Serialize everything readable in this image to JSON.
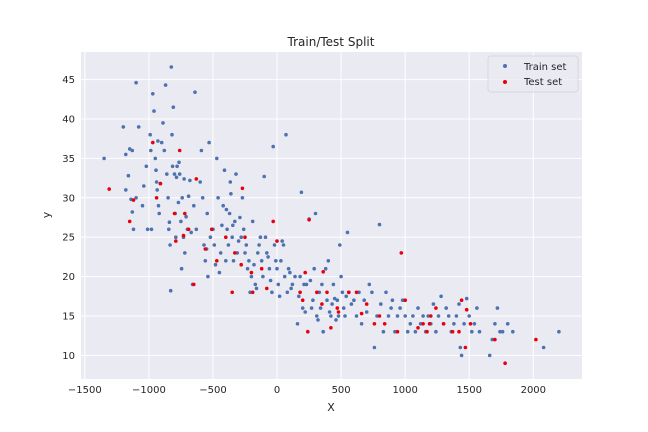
{
  "chart_data": {
    "type": "scatter",
    "title": "Train/Test Split",
    "xlabel": "X",
    "ylabel": "y",
    "xlim": [
      -1530,
      2380
    ],
    "ylim": [
      7,
      48.5
    ],
    "xticks": [
      -1500,
      -1000,
      -500,
      0,
      500,
      1000,
      1500,
      2000
    ],
    "xtick_labels": [
      "−1500",
      "−1000",
      "−500",
      "0",
      "500",
      "1000",
      "1500",
      "2000"
    ],
    "yticks": [
      10,
      15,
      20,
      25,
      30,
      35,
      40,
      45
    ],
    "ytick_labels": [
      "10",
      "15",
      "20",
      "25",
      "30",
      "35",
      "40",
      "45"
    ],
    "grid": true,
    "legend_position": "top-right",
    "colors": {
      "train": "#4c72b0",
      "test": "#e8000b",
      "background": "#eaeaf2",
      "grid": "#ffffff"
    },
    "series": [
      {
        "name": "Train set",
        "key": "train",
        "points": [
          [
            -1350,
            35
          ],
          [
            -1200,
            39
          ],
          [
            -1180,
            35.5
          ],
          [
            -1150,
            36.2
          ],
          [
            -1130,
            36
          ],
          [
            -1100,
            44.6
          ],
          [
            -1080,
            39
          ],
          [
            -1180,
            31
          ],
          [
            -1160,
            32.8
          ],
          [
            -1140,
            29.8
          ],
          [
            -1130,
            28.2
          ],
          [
            -1120,
            26
          ],
          [
            -1100,
            30
          ],
          [
            -1050,
            29
          ],
          [
            -1040,
            31.5
          ],
          [
            -1020,
            34
          ],
          [
            -1010,
            26
          ],
          [
            -990,
            38
          ],
          [
            -985,
            36
          ],
          [
            -980,
            26
          ],
          [
            -970,
            43.2
          ],
          [
            -960,
            41
          ],
          [
            -950,
            35
          ],
          [
            -945,
            33.5
          ],
          [
            -940,
            32
          ],
          [
            -935,
            31
          ],
          [
            -930,
            37.2
          ],
          [
            -925,
            29
          ],
          [
            -920,
            28
          ],
          [
            -910,
            31.8
          ],
          [
            -900,
            37
          ],
          [
            -890,
            39.5
          ],
          [
            -880,
            36
          ],
          [
            -870,
            44.3
          ],
          [
            -860,
            33
          ],
          [
            -850,
            30
          ],
          [
            -845,
            26
          ],
          [
            -840,
            26.9
          ],
          [
            -835,
            24
          ],
          [
            -830,
            18.2
          ],
          [
            -825,
            46.6
          ],
          [
            -820,
            38
          ],
          [
            -815,
            34
          ],
          [
            -810,
            41.5
          ],
          [
            -800,
            33
          ],
          [
            -795,
            28
          ],
          [
            -790,
            25
          ],
          [
            -785,
            32.6
          ],
          [
            -780,
            34
          ],
          [
            -770,
            29.4
          ],
          [
            -765,
            34.5
          ],
          [
            -760,
            33
          ],
          [
            -750,
            27
          ],
          [
            -745,
            21
          ],
          [
            -740,
            30
          ],
          [
            -730,
            25
          ],
          [
            -725,
            32.4
          ],
          [
            -720,
            23
          ],
          [
            -710,
            27.6
          ],
          [
            -700,
            26
          ],
          [
            -690,
            30.2
          ],
          [
            -680,
            32.2
          ],
          [
            -670,
            25.6
          ],
          [
            -660,
            19
          ],
          [
            -650,
            29
          ],
          [
            -640,
            43.4
          ],
          [
            -630,
            26
          ],
          [
            -600,
            32
          ],
          [
            -590,
            36
          ],
          [
            -580,
            30
          ],
          [
            -570,
            24
          ],
          [
            -560,
            22
          ],
          [
            -550,
            23.5
          ],
          [
            -545,
            28
          ],
          [
            -540,
            20
          ],
          [
            -530,
            37
          ],
          [
            -520,
            25
          ],
          [
            -500,
            26
          ],
          [
            -490,
            24
          ],
          [
            -480,
            21.5
          ],
          [
            -470,
            35
          ],
          [
            -460,
            30
          ],
          [
            -450,
            20.5
          ],
          [
            -440,
            23
          ],
          [
            -430,
            26.5
          ],
          [
            -420,
            29
          ],
          [
            -410,
            33.5
          ],
          [
            -400,
            22
          ],
          [
            -395,
            28.5
          ],
          [
            -390,
            26
          ],
          [
            -380,
            24
          ],
          [
            -370,
            28
          ],
          [
            -365,
            32
          ],
          [
            -360,
            30.5
          ],
          [
            -350,
            25
          ],
          [
            -345,
            26.5
          ],
          [
            -340,
            22
          ],
          [
            -330,
            27
          ],
          [
            -320,
            33
          ],
          [
            -310,
            23
          ],
          [
            -300,
            24.5
          ],
          [
            -290,
            27.5
          ],
          [
            -280,
            25
          ],
          [
            -270,
            30
          ],
          [
            -260,
            26
          ],
          [
            -250,
            23
          ],
          [
            -240,
            24
          ],
          [
            -230,
            21
          ],
          [
            -220,
            22
          ],
          [
            -210,
            18
          ],
          [
            -200,
            20
          ],
          [
            -190,
            27
          ],
          [
            -180,
            21.5
          ],
          [
            -170,
            19
          ],
          [
            -160,
            18.5
          ],
          [
            -150,
            23
          ],
          [
            -140,
            24
          ],
          [
            -130,
            25
          ],
          [
            -120,
            22
          ],
          [
            -110,
            20
          ],
          [
            -100,
            32.7
          ],
          [
            -90,
            25
          ],
          [
            -80,
            23
          ],
          [
            -70,
            22.5
          ],
          [
            -60,
            21
          ],
          [
            -50,
            19.5
          ],
          [
            -40,
            18
          ],
          [
            -30,
            36.5
          ],
          [
            -20,
            24
          ],
          [
            -10,
            22
          ],
          [
            0,
            21
          ],
          [
            10,
            19
          ],
          [
            20,
            17.5
          ],
          [
            30,
            22
          ],
          [
            40,
            24.5
          ],
          [
            50,
            24
          ],
          [
            60,
            20
          ],
          [
            70,
            38
          ],
          [
            80,
            18
          ],
          [
            90,
            21
          ],
          [
            100,
            20.5
          ],
          [
            110,
            18.5
          ],
          [
            120,
            19
          ],
          [
            140,
            20
          ],
          [
            160,
            14
          ],
          [
            170,
            17.5
          ],
          [
            180,
            20
          ],
          [
            190,
            30.7
          ],
          [
            200,
            16
          ],
          [
            210,
            19
          ],
          [
            220,
            15.5
          ],
          [
            230,
            19
          ],
          [
            250,
            27.3
          ],
          [
            260,
            19.5
          ],
          [
            270,
            16
          ],
          [
            280,
            17
          ],
          [
            290,
            21
          ],
          [
            300,
            28
          ],
          [
            310,
            15
          ],
          [
            320,
            14.5
          ],
          [
            330,
            18
          ],
          [
            340,
            16
          ],
          [
            350,
            19
          ],
          [
            360,
            13
          ],
          [
            380,
            21
          ],
          [
            390,
            17
          ],
          [
            400,
            22
          ],
          [
            410,
            15.5
          ],
          [
            420,
            15
          ],
          [
            430,
            16.5
          ],
          [
            440,
            19
          ],
          [
            450,
            17.2
          ],
          [
            460,
            14.5
          ],
          [
            470,
            17
          ],
          [
            480,
            15
          ],
          [
            490,
            24
          ],
          [
            500,
            20
          ],
          [
            510,
            18
          ],
          [
            520,
            16
          ],
          [
            530,
            15
          ],
          [
            540,
            17.5
          ],
          [
            550,
            25.6
          ],
          [
            560,
            18
          ],
          [
            580,
            16.5
          ],
          [
            600,
            17
          ],
          [
            620,
            15
          ],
          [
            640,
            18
          ],
          [
            660,
            14
          ],
          [
            680,
            17
          ],
          [
            700,
            15.5
          ],
          [
            720,
            19
          ],
          [
            740,
            18
          ],
          [
            760,
            11
          ],
          [
            780,
            15
          ],
          [
            800,
            26.6
          ],
          [
            810,
            16.5
          ],
          [
            830,
            13
          ],
          [
            850,
            18
          ],
          [
            870,
            15
          ],
          [
            890,
            16
          ],
          [
            900,
            17
          ],
          [
            920,
            13
          ],
          [
            940,
            15
          ],
          [
            960,
            16
          ],
          [
            980,
            17
          ],
          [
            1000,
            15
          ],
          [
            1020,
            13
          ],
          [
            1040,
            14
          ],
          [
            1060,
            15
          ],
          [
            1080,
            13
          ],
          [
            1100,
            16
          ],
          [
            1120,
            14
          ],
          [
            1140,
            15
          ],
          [
            1160,
            13
          ],
          [
            1180,
            15
          ],
          [
            1200,
            14
          ],
          [
            1220,
            16.5
          ],
          [
            1240,
            13
          ],
          [
            1260,
            15
          ],
          [
            1280,
            17.5
          ],
          [
            1300,
            14
          ],
          [
            1320,
            16
          ],
          [
            1340,
            15
          ],
          [
            1360,
            13
          ],
          [
            1380,
            14
          ],
          [
            1400,
            15
          ],
          [
            1420,
            16.5
          ],
          [
            1430,
            11
          ],
          [
            1440,
            10
          ],
          [
            1460,
            14
          ],
          [
            1480,
            17.2
          ],
          [
            1500,
            15
          ],
          [
            1520,
            13
          ],
          [
            1540,
            14
          ],
          [
            1560,
            16
          ],
          [
            1580,
            13
          ],
          [
            1660,
            10
          ],
          [
            1680,
            12
          ],
          [
            1700,
            14
          ],
          [
            1720,
            16
          ],
          [
            1740,
            13
          ],
          [
            1760,
            13
          ],
          [
            1800,
            14
          ],
          [
            1840,
            13
          ],
          [
            2080,
            11
          ],
          [
            2200,
            13
          ]
        ]
      },
      {
        "name": "Test set",
        "key": "test",
        "points": [
          [
            -1310,
            31.1
          ],
          [
            -1150,
            27
          ],
          [
            -1120,
            29.7
          ],
          [
            -970,
            37
          ],
          [
            -940,
            30
          ],
          [
            -910,
            31.8
          ],
          [
            -800,
            28
          ],
          [
            -790,
            24.5
          ],
          [
            -760,
            36
          ],
          [
            -730,
            25.2
          ],
          [
            -720,
            28
          ],
          [
            -690,
            26
          ],
          [
            -650,
            19
          ],
          [
            -630,
            32.4
          ],
          [
            -560,
            23.5
          ],
          [
            -510,
            26
          ],
          [
            -470,
            22
          ],
          [
            -400,
            25
          ],
          [
            -350,
            18
          ],
          [
            -330,
            23
          ],
          [
            -280,
            21.5
          ],
          [
            -270,
            31.2
          ],
          [
            -250,
            25
          ],
          [
            -200,
            20.5
          ],
          [
            -190,
            18
          ],
          [
            -120,
            21
          ],
          [
            -80,
            18.5
          ],
          [
            -30,
            27
          ],
          [
            0,
            24.5
          ],
          [
            180,
            18
          ],
          [
            200,
            17
          ],
          [
            220,
            20.5
          ],
          [
            240,
            13
          ],
          [
            250,
            27.2
          ],
          [
            310,
            18
          ],
          [
            350,
            16.5
          ],
          [
            360,
            20.6
          ],
          [
            390,
            18
          ],
          [
            420,
            13.5
          ],
          [
            470,
            16
          ],
          [
            480,
            15.5
          ],
          [
            560,
            18
          ],
          [
            620,
            18
          ],
          [
            660,
            15.3
          ],
          [
            700,
            16.5
          ],
          [
            760,
            14
          ],
          [
            800,
            15
          ],
          [
            840,
            14
          ],
          [
            940,
            13
          ],
          [
            970,
            23
          ],
          [
            1000,
            17
          ],
          [
            1100,
            13.5
          ],
          [
            1140,
            14
          ],
          [
            1170,
            13
          ],
          [
            1190,
            14
          ],
          [
            1200,
            15
          ],
          [
            1240,
            16
          ],
          [
            1300,
            14
          ],
          [
            1370,
            13
          ],
          [
            1420,
            13
          ],
          [
            1440,
            17
          ],
          [
            1470,
            11
          ],
          [
            1480,
            15.8
          ],
          [
            1510,
            14
          ],
          [
            1700,
            12
          ],
          [
            1780,
            9
          ],
          [
            2020,
            12
          ]
        ]
      }
    ]
  }
}
